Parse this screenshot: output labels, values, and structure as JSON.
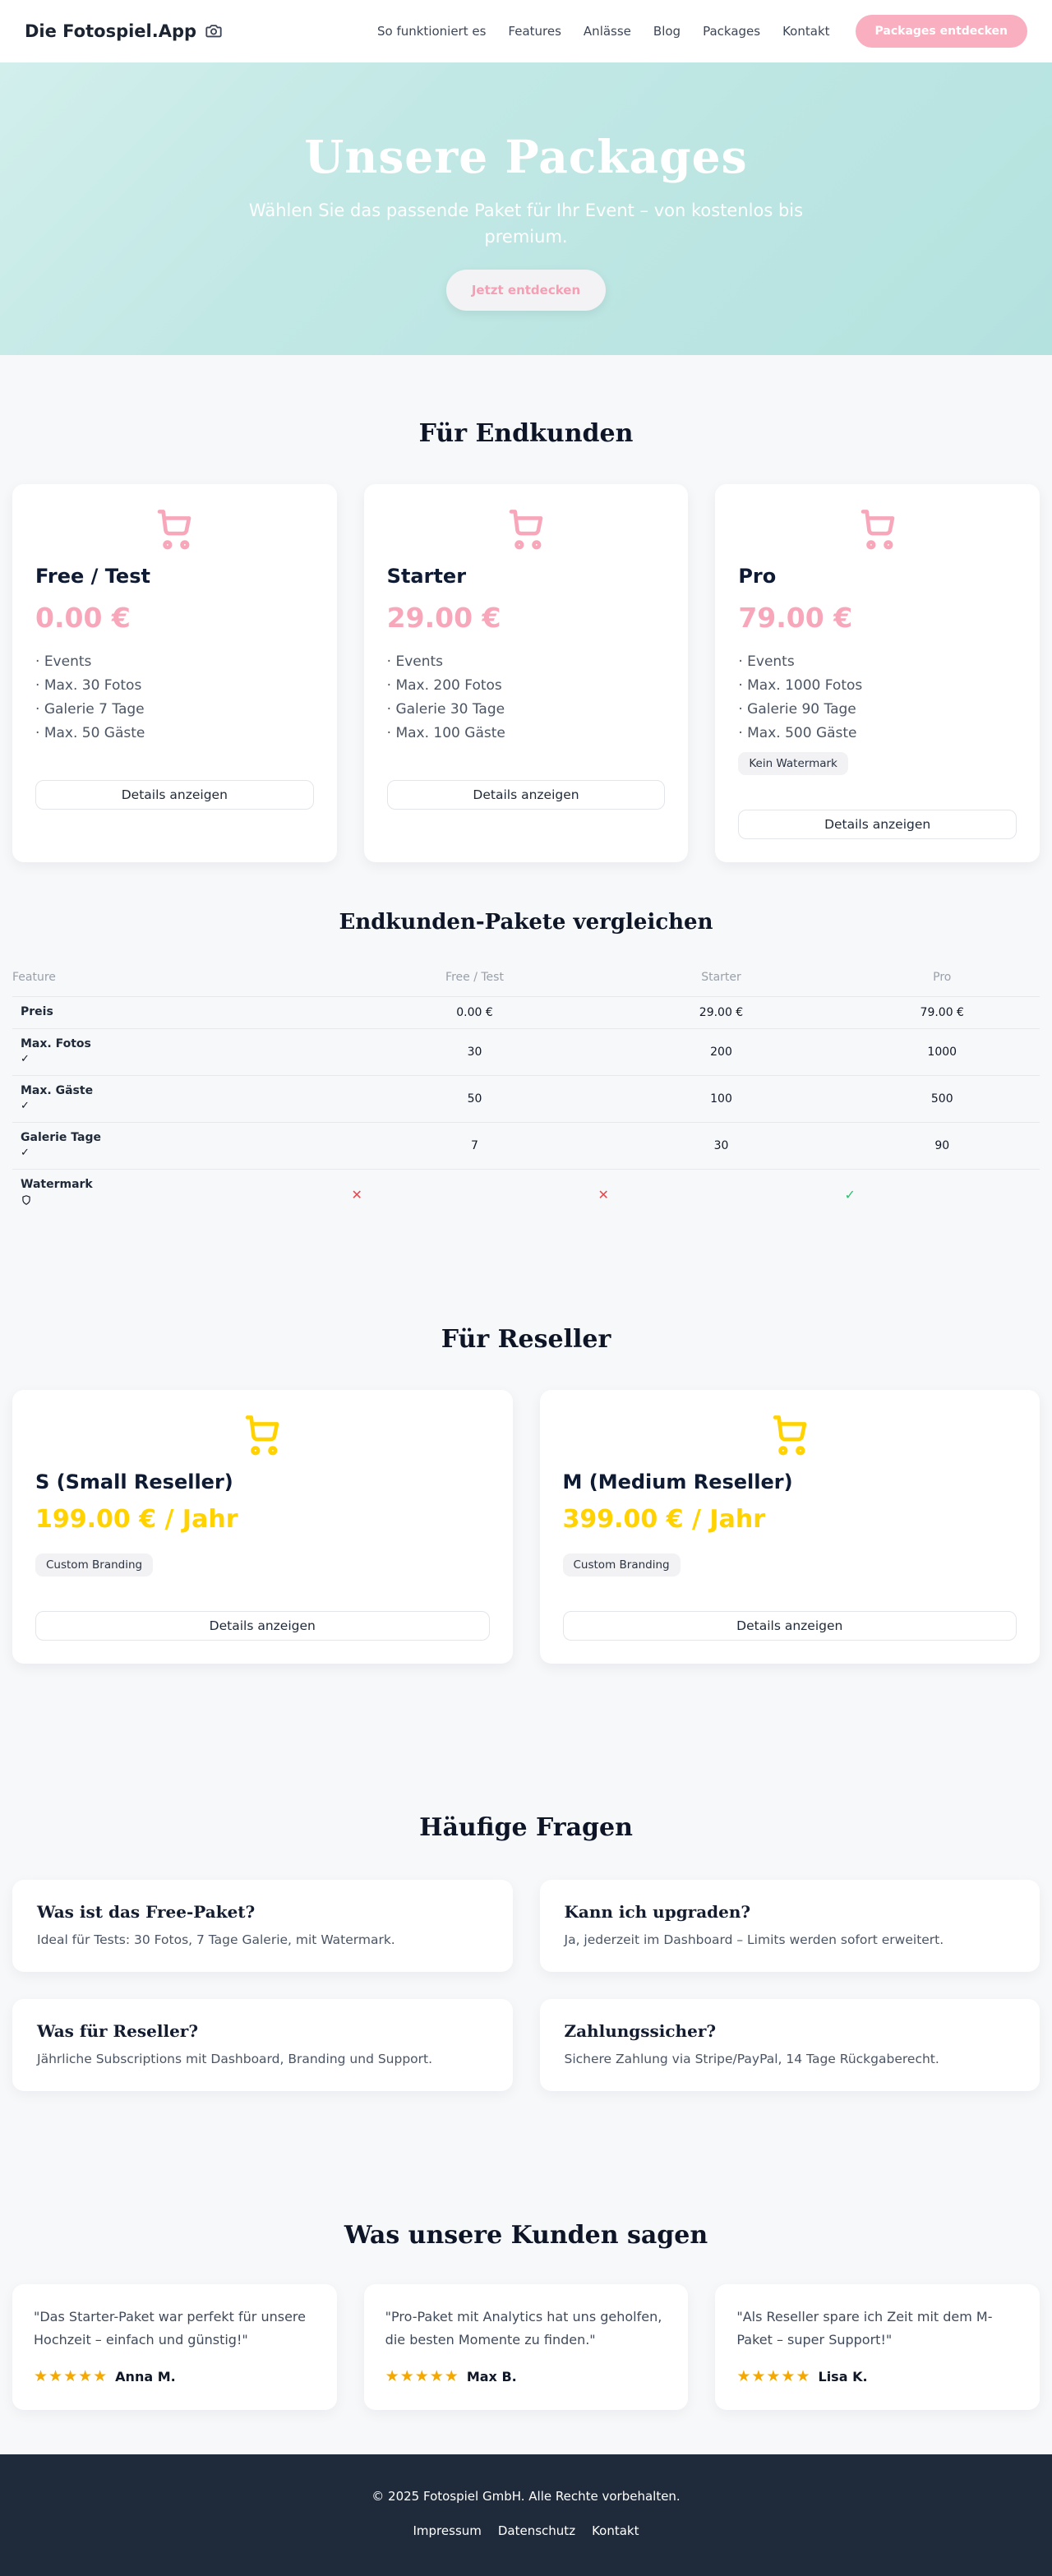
{
  "header": {
    "logo": "Die Fotospiel.App",
    "nav": [
      "So funktioniert es",
      "Features",
      "Anlässe",
      "Blog",
      "Packages",
      "Kontakt"
    ],
    "cta": "Packages entdecken"
  },
  "hero": {
    "title": "Unsere Packages",
    "subtitle": "Wählen Sie das passende Paket für Ihr Event – von kostenlos bis premium.",
    "cta": "Jetzt entdecken"
  },
  "endkunden": {
    "heading": "Für Endkunden",
    "details_label": "Details anzeigen",
    "packages": [
      {
        "name": "Free / Test",
        "price": "0.00 €",
        "features": [
          "Events",
          "Max. 30 Fotos",
          "Galerie 7 Tage",
          "Max. 50 Gäste"
        ]
      },
      {
        "name": "Starter",
        "price": "29.00 €",
        "features": [
          "Events",
          "Max. 200 Fotos",
          "Galerie 30 Tage",
          "Max. 100 Gäste"
        ]
      },
      {
        "name": "Pro",
        "price": "79.00 €",
        "features": [
          "Events",
          "Max. 1000 Fotos",
          "Galerie 90 Tage",
          "Max. 500 Gäste"
        ],
        "badge": "Kein Watermark"
      }
    ]
  },
  "vergleich": {
    "heading": "Endkunden-Pakete vergleichen",
    "columns": [
      "Feature",
      "Free / Test",
      "Starter",
      "Pro"
    ],
    "rows": [
      {
        "feature": "Preis",
        "icon": "none",
        "type": "text",
        "values": [
          "0.00 €",
          "29.00 €",
          "79.00 €"
        ]
      },
      {
        "feature": "Max. Fotos",
        "icon": "check",
        "type": "text",
        "values": [
          "30",
          "200",
          "1000"
        ]
      },
      {
        "feature": "Max. Gäste",
        "icon": "check",
        "type": "text",
        "values": [
          "50",
          "100",
          "500"
        ]
      },
      {
        "feature": "Galerie Tage",
        "icon": "check",
        "type": "text",
        "values": [
          "7",
          "30",
          "90"
        ]
      },
      {
        "feature": "Watermark",
        "icon": "shield",
        "type": "bool",
        "values": [
          "no",
          "no",
          "yes"
        ]
      }
    ]
  },
  "reseller": {
    "heading": "Für Reseller",
    "details_label": "Details anzeigen",
    "packages": [
      {
        "name": "S (Small Reseller)",
        "price": "199.00 € / Jahr",
        "features": [],
        "badge": "Custom Branding"
      },
      {
        "name": "M (Medium Reseller)",
        "price": "399.00 € / Jahr",
        "features": [],
        "badge": "Custom Branding"
      }
    ]
  },
  "faq": {
    "heading": "Häufige Fragen",
    "items": [
      {
        "q": "Was ist das Free-Paket?",
        "a": "Ideal für Tests: 30 Fotos, 7 Tage Galerie, mit Watermark."
      },
      {
        "q": "Kann ich upgraden?",
        "a": "Ja, jederzeit im Dashboard – Limits werden sofort erweitert."
      },
      {
        "q": "Was für Reseller?",
        "a": "Jährliche Subscriptions mit Dashboard, Branding und Support."
      },
      {
        "q": "Zahlungssicher?",
        "a": "Sichere Zahlung via Stripe/PayPal, 14 Tage Rückgaberecht."
      }
    ]
  },
  "testimonials": {
    "heading": "Was unsere Kunden sagen",
    "items": [
      {
        "quote": "\"Das Starter-Paket war perfekt für unsere Hochzeit – einfach und günstig!\"",
        "stars": 5,
        "name": "Anna M."
      },
      {
        "quote": "\"Pro-Paket mit Analytics hat uns geholfen, die besten Momente zu finden.\"",
        "stars": 5,
        "name": "Max B."
      },
      {
        "quote": "\"Als Reseller spare ich Zeit mit dem M-Paket – super Support!\"",
        "stars": 5,
        "name": "Lisa K."
      }
    ]
  },
  "footer": {
    "copyright": "© 2025 Fotospiel GmbH. Alle Rechte vorbehalten.",
    "links": [
      "Impressum",
      "Datenschutz",
      "Kontakt"
    ]
  },
  "colors": {
    "accent_pink": "#f8a7ba",
    "accent_yellow": "#ffd200",
    "hero_teal": "#b4e2df",
    "footer_navy": "#1f2a3a",
    "cross_red": "#e5484d",
    "check_green": "#2fbf71",
    "star_gold": "#f5a800"
  }
}
